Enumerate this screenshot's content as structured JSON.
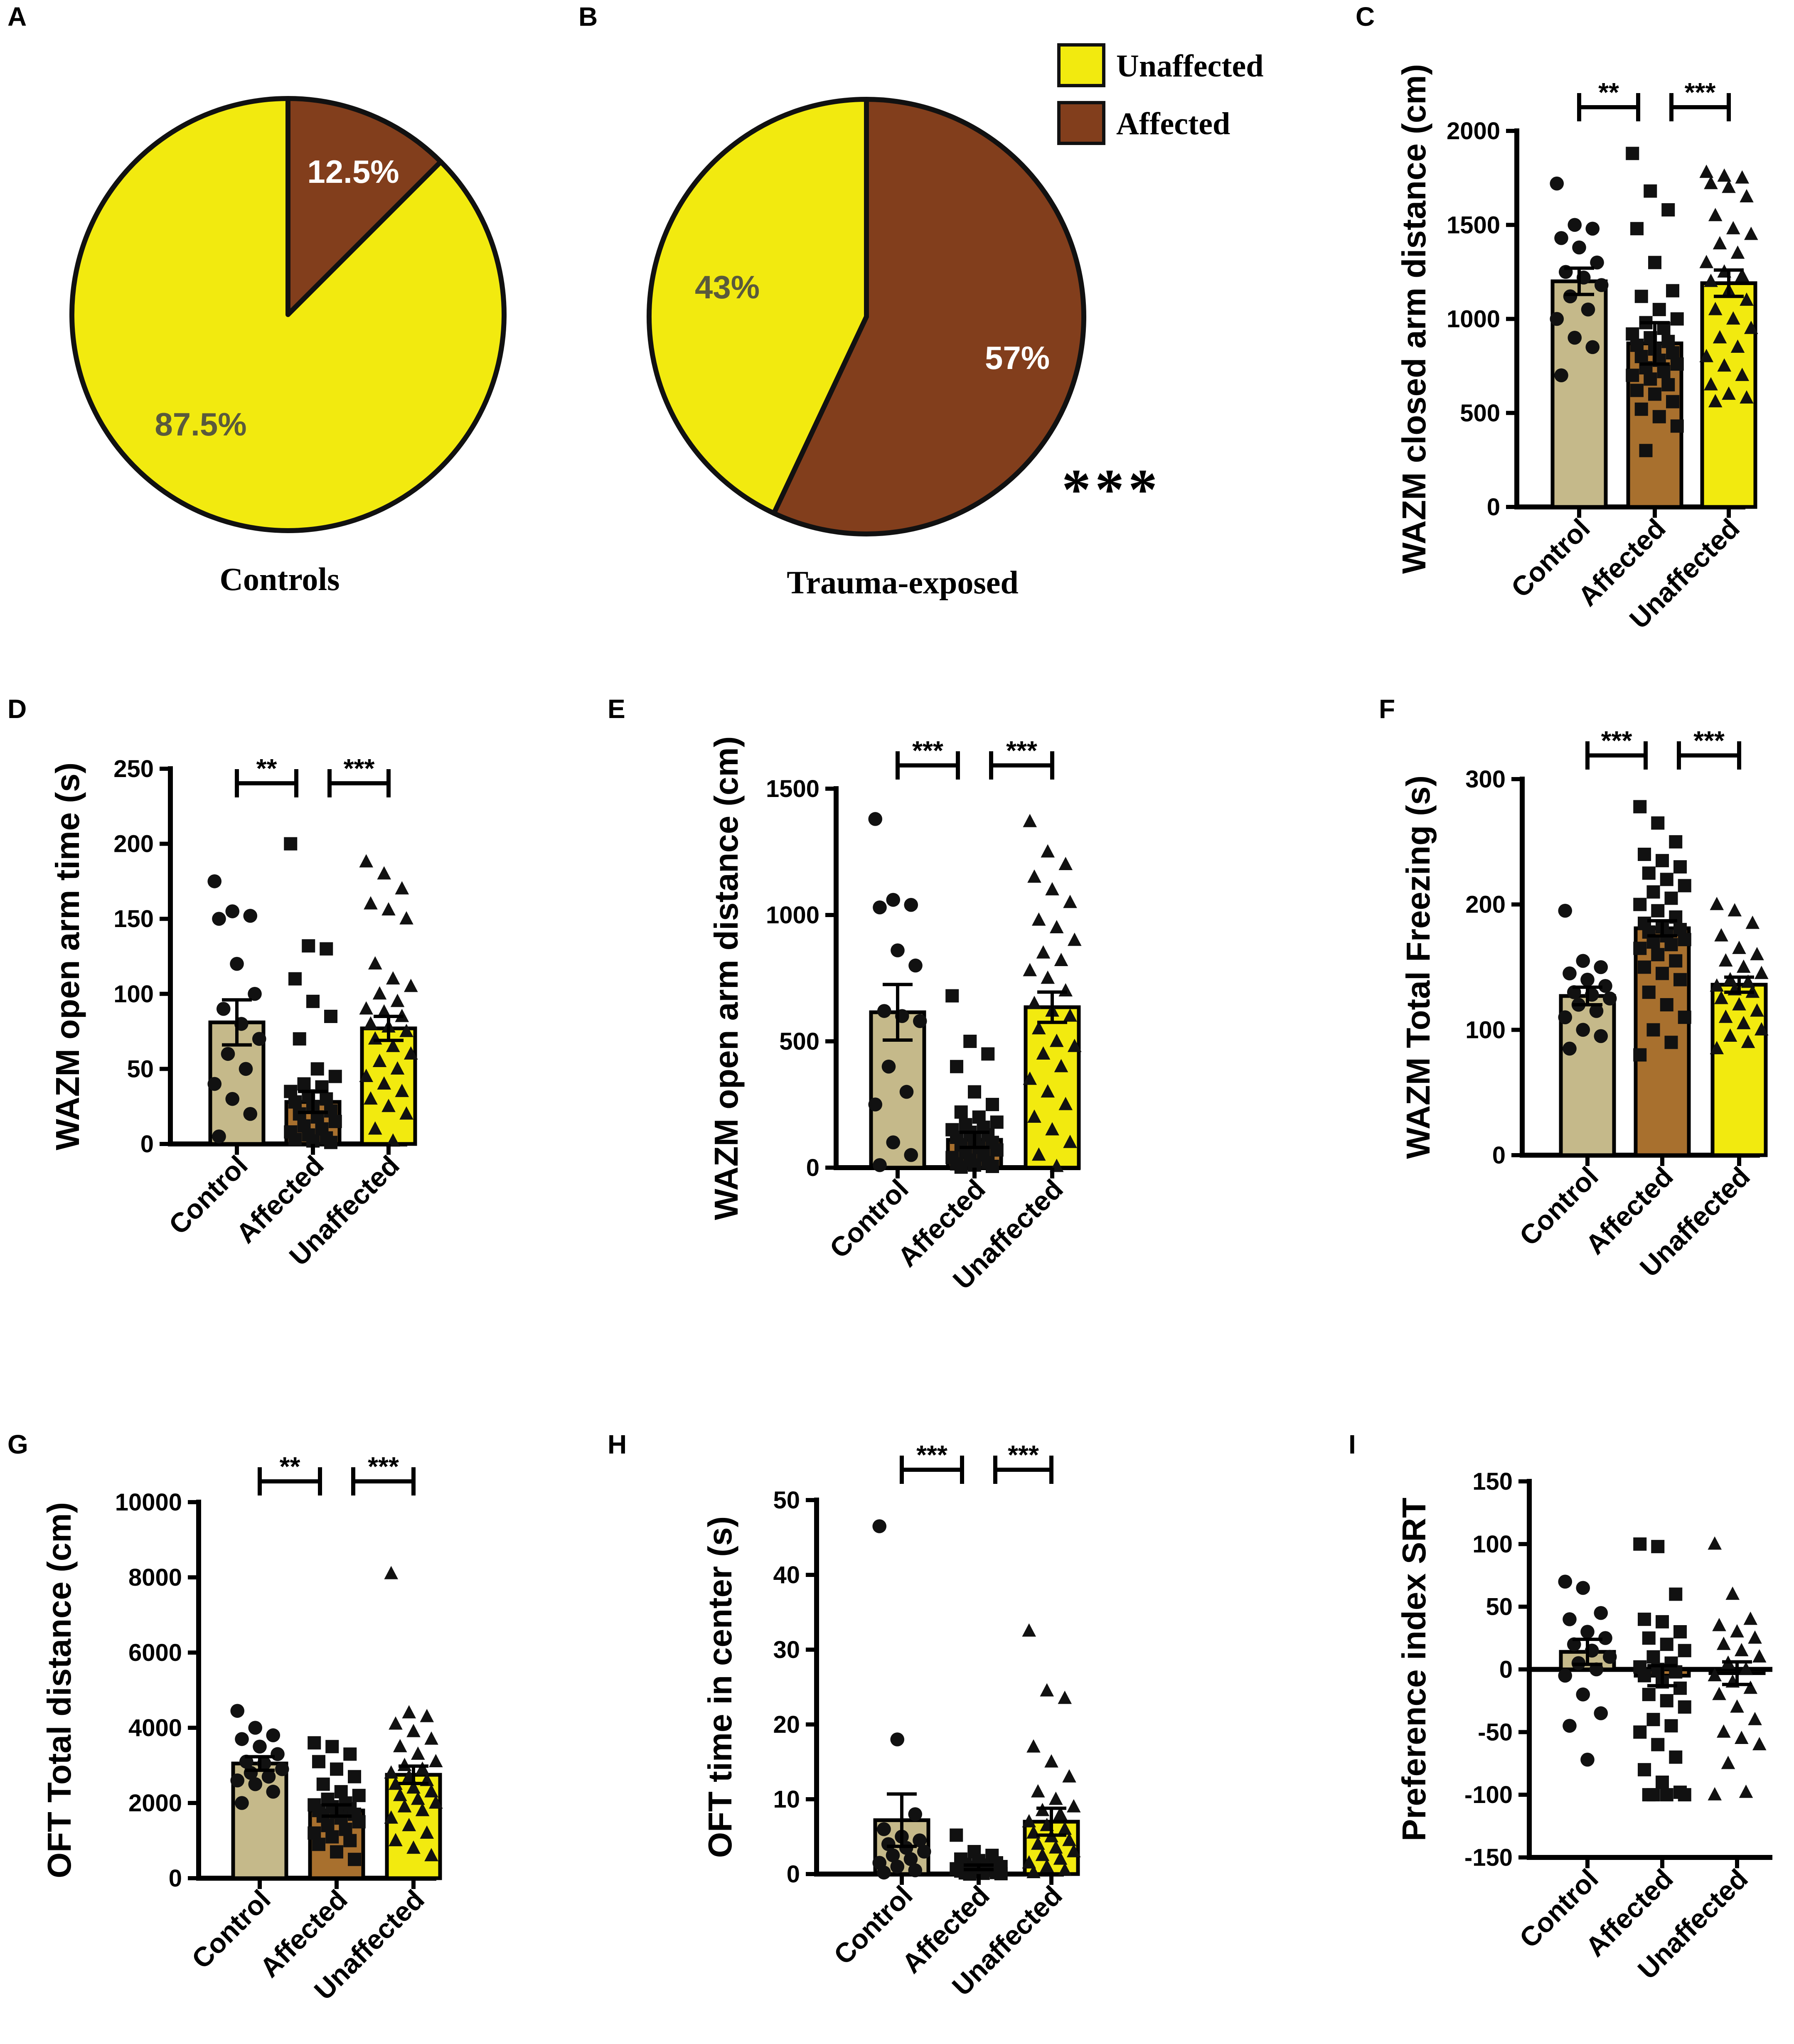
{
  "figure_title": "",
  "colors": {
    "yellow": "#f2ea0f",
    "brown": "#823e1c",
    "tan": "#c5b98a",
    "brown_bar": "#a8702e",
    "pie_text_dark": "#5a5a3c",
    "white": "#ffffff"
  },
  "chart_data": [
    {
      "id": "A",
      "type": "pie",
      "title": "Controls",
      "slices": [
        {
          "label": "Affected",
          "value": 12.5,
          "display": "12.5%",
          "color": "brown"
        },
        {
          "label": "Unaffected",
          "value": 87.5,
          "display": "87.5%",
          "color": "yellow"
        }
      ]
    },
    {
      "id": "B",
      "type": "pie",
      "title": "Trauma-exposed",
      "legend": [
        {
          "label": "Unaffected",
          "color": "yellow"
        },
        {
          "label": "Affected",
          "color": "brown"
        }
      ],
      "annotation": "***",
      "slices": [
        {
          "label": "Affected",
          "value": 57,
          "display": "57%",
          "color": "brown"
        },
        {
          "label": "Unaffected",
          "value": 43,
          "display": "43%",
          "color": "yellow"
        }
      ]
    },
    {
      "id": "C",
      "type": "bar",
      "ylabel": "WAZM closed arm distance (cm)",
      "categories": [
        "Control",
        "Affected",
        "Unaffected"
      ],
      "values": [
        1200,
        870,
        1190
      ],
      "errors": [
        70,
        110,
        70
      ],
      "ylim": [
        0,
        2000
      ],
      "yticks": [
        0,
        500,
        1000,
        1500,
        2000
      ],
      "ytick_labels": [
        "0",
        "500",
        "1000",
        "1500",
        "2000"
      ],
      "significance": [
        {
          "from": 0,
          "to": 1,
          "label": "**"
        },
        {
          "from": 1,
          "to": 2,
          "label": "***"
        }
      ],
      "points": [
        [
          1720,
          1500,
          1480,
          1430,
          1380,
          1300,
          1250,
          1220,
          1180,
          1120,
          1050,
          1000,
          900,
          850,
          700
        ],
        [
          1880,
          1680,
          1580,
          1480,
          1300,
          1150,
          1120,
          1050,
          1000,
          980,
          950,
          920,
          900,
          880,
          860,
          840,
          820,
          800,
          780,
          760,
          740,
          720,
          700,
          680,
          650,
          620,
          600,
          560,
          520,
          480,
          430,
          300
        ],
        [
          1780,
          1760,
          1750,
          1720,
          1700,
          1650,
          1550,
          1480,
          1450,
          1400,
          1350,
          1300,
          1250,
          1230,
          1200,
          1150,
          1100,
          1050,
          1000,
          950,
          900,
          850,
          800,
          750,
          700,
          650,
          600,
          580,
          560
        ]
      ]
    },
    {
      "id": "D",
      "type": "bar",
      "ylabel": "WAZM open arm time (s)",
      "categories": [
        "Control",
        "Affected",
        "Unaffected"
      ],
      "values": [
        81,
        28,
        77
      ],
      "errors": [
        15,
        7,
        8
      ],
      "ylim": [
        0,
        250
      ],
      "yticks": [
        0,
        50,
        100,
        150,
        200,
        250
      ],
      "ytick_labels": [
        "0",
        "50",
        "100",
        "150",
        "200",
        "250"
      ],
      "significance": [
        {
          "from": 0,
          "to": 1,
          "label": "**"
        },
        {
          "from": 1,
          "to": 2,
          "label": "***"
        }
      ],
      "points": [
        [
          175,
          155,
          152,
          150,
          120,
          100,
          90,
          80,
          70,
          60,
          50,
          40,
          30,
          20,
          5
        ],
        [
          200,
          132,
          130,
          110,
          95,
          85,
          70,
          50,
          45,
          40,
          38,
          35,
          32,
          30,
          28,
          25,
          22,
          20,
          18,
          15,
          12,
          10,
          8,
          6,
          4,
          3,
          2,
          1
        ],
        [
          188,
          180,
          170,
          160,
          156,
          150,
          120,
          110,
          105,
          100,
          95,
          90,
          88,
          85,
          80,
          78,
          75,
          70,
          65,
          60,
          55,
          50,
          45,
          40,
          35,
          30,
          25,
          20,
          10,
          2
        ]
      ]
    },
    {
      "id": "E",
      "type": "bar",
      "ylabel": "WAZM open arm distance (cm)",
      "categories": [
        "Control",
        "Affected",
        "Unaffected"
      ],
      "values": [
        615,
        110,
        635
      ],
      "errors": [
        110,
        30,
        60
      ],
      "ylim": [
        0,
        1500
      ],
      "yticks": [
        0,
        500,
        1000,
        1500
      ],
      "ytick_labels": [
        "0",
        "500",
        "1000",
        "1500"
      ],
      "significance": [
        {
          "from": 0,
          "to": 1,
          "label": "***"
        },
        {
          "from": 1,
          "to": 2,
          "label": "***"
        }
      ],
      "points": [
        [
          1380,
          1060,
          1040,
          1030,
          860,
          800,
          620,
          600,
          580,
          400,
          300,
          250,
          100,
          50,
          10
        ],
        [
          680,
          500,
          450,
          400,
          300,
          250,
          220,
          200,
          180,
          170,
          160,
          150,
          140,
          130,
          120,
          110,
          100,
          90,
          80,
          70,
          60,
          50,
          40,
          30,
          20,
          15,
          10,
          5,
          2
        ],
        [
          1370,
          1250,
          1200,
          1150,
          1100,
          1050,
          980,
          950,
          900,
          850,
          820,
          780,
          750,
          700,
          650,
          620,
          600,
          550,
          500,
          480,
          450,
          400,
          350,
          300,
          250,
          200,
          150,
          100,
          50,
          5
        ]
      ]
    },
    {
      "id": "F",
      "type": "bar",
      "ylabel": "WAZM Total  Freezing (s)",
      "categories": [
        "Control",
        "Affected",
        "Unaffected"
      ],
      "values": [
        127,
        181,
        136
      ],
      "errors": [
        7,
        6,
        6
      ],
      "ylim": [
        0,
        300
      ],
      "yticks": [
        0,
        100,
        200,
        300
      ],
      "ytick_labels": [
        "0",
        "100",
        "200",
        "300"
      ],
      "significance": [
        {
          "from": 0,
          "to": 1,
          "label": "***"
        },
        {
          "from": 1,
          "to": 2,
          "label": "***"
        }
      ],
      "points": [
        [
          195,
          155,
          150,
          145,
          140,
          135,
          130,
          128,
          125,
          120,
          115,
          110,
          100,
          95,
          85
        ],
        [
          278,
          265,
          250,
          240,
          235,
          230,
          225,
          220,
          215,
          210,
          205,
          200,
          195,
          190,
          185,
          182,
          180,
          178,
          175,
          172,
          170,
          168,
          165,
          160,
          155,
          150,
          145,
          140,
          130,
          120,
          110,
          100,
          90,
          80
        ],
        [
          200,
          195,
          185,
          175,
          165,
          160,
          155,
          150,
          145,
          140,
          138,
          135,
          132,
          130,
          125,
          120,
          115,
          110,
          105,
          100,
          95,
          90,
          85
        ]
      ]
    },
    {
      "id": "G",
      "type": "bar",
      "ylabel": "OFT Total distance (cm)",
      "categories": [
        "Control",
        "Affected",
        "Unaffected"
      ],
      "values": [
        3050,
        1800,
        2750
      ],
      "errors": [
        180,
        150,
        230
      ],
      "ylim": [
        0,
        10000
      ],
      "yticks": [
        0,
        2000,
        4000,
        6000,
        8000,
        10000
      ],
      "ytick_labels": [
        "0",
        "2000",
        "4000",
        "6000",
        "8000",
        "10000"
      ],
      "significance": [
        {
          "from": 0,
          "to": 1,
          "label": "**"
        },
        {
          "from": 1,
          "to": 2,
          "label": "***"
        }
      ],
      "points": [
        [
          4450,
          4000,
          3800,
          3700,
          3500,
          3300,
          3100,
          3050,
          2900,
          2800,
          2700,
          2600,
          2500,
          2300,
          2000
        ],
        [
          3600,
          3500,
          3300,
          3100,
          2900,
          2700,
          2500,
          2300,
          2200,
          2100,
          2000,
          1950,
          1900,
          1850,
          1800,
          1750,
          1700,
          1650,
          1600,
          1500,
          1400,
          1300,
          1200,
          1100,
          1000,
          900,
          700,
          500
        ],
        [
          8100,
          4400,
          4300,
          4100,
          3900,
          3700,
          3500,
          3300,
          3100,
          3000,
          2900,
          2800,
          2700,
          2600,
          2500,
          2400,
          2300,
          2200,
          2100,
          2000,
          1900,
          1800,
          1600,
          1400,
          1200,
          1000,
          800,
          600
        ]
      ]
    },
    {
      "id": "H",
      "type": "bar",
      "ylabel": "OFT time in center (s)",
      "categories": [
        "Control",
        "Affected",
        "Unaffected"
      ],
      "values": [
        7.2,
        0.9,
        7
      ],
      "errors": [
        3.5,
        0.3,
        1.8
      ],
      "ylim": [
        0,
        50
      ],
      "yticks": [
        0,
        10,
        20,
        30,
        40,
        50
      ],
      "ytick_labels": [
        "0",
        "10",
        "20",
        "30",
        "40",
        "50"
      ],
      "significance": [
        {
          "from": 0,
          "to": 1,
          "label": "***"
        },
        {
          "from": 1,
          "to": 2,
          "label": "***"
        }
      ],
      "points": [
        [
          46.5,
          18,
          8,
          6,
          5,
          4.5,
          4,
          3.5,
          3,
          2.5,
          2,
          1.5,
          1,
          0.5,
          0.2
        ],
        [
          5.2,
          3,
          2.5,
          2,
          1.8,
          1.5,
          1.3,
          1.2,
          1,
          0.9,
          0.8,
          0.7,
          0.6,
          0.5,
          0.4,
          0.3,
          0.2,
          0.15,
          0.1,
          0.05,
          0
        ],
        [
          32.5,
          24.5,
          23.5,
          17,
          15,
          13,
          11,
          10,
          9,
          8.5,
          8,
          7,
          6.5,
          6,
          5.5,
          5,
          4.5,
          4,
          3.5,
          3,
          2.5,
          2,
          1.5,
          1,
          0.5,
          0.2
        ]
      ]
    },
    {
      "id": "I",
      "type": "bar",
      "ylabel": "Preference index SRT",
      "categories": [
        "Control",
        "Affected",
        "Unaffected"
      ],
      "values": [
        14,
        -5,
        -3
      ],
      "errors": [
        10,
        8,
        9
      ],
      "ylim": [
        -150,
        150
      ],
      "yticks": [
        -150,
        -100,
        -50,
        0,
        50,
        100,
        150
      ],
      "ytick_labels": [
        "-150",
        "-100",
        "-50",
        "0",
        "50",
        "100",
        "150"
      ],
      "zero_line": true,
      "points": [
        [
          70,
          65,
          45,
          40,
          30,
          25,
          20,
          15,
          10,
          5,
          0,
          -5,
          -20,
          -35,
          -45,
          -72
        ],
        [
          100,
          98,
          60,
          40,
          38,
          30,
          25,
          20,
          15,
          10,
          5,
          2,
          0,
          -2,
          -5,
          -10,
          -15,
          -20,
          -25,
          -30,
          -40,
          -45,
          -50,
          -60,
          -70,
          -80,
          -90,
          -98,
          -100,
          -100,
          -100,
          -100
        ],
        [
          100,
          60,
          40,
          35,
          30,
          25,
          20,
          15,
          10,
          5,
          0,
          -5,
          -10,
          -15,
          -20,
          -30,
          -40,
          -50,
          -55,
          -60,
          -75,
          -98,
          -100
        ]
      ]
    }
  ]
}
